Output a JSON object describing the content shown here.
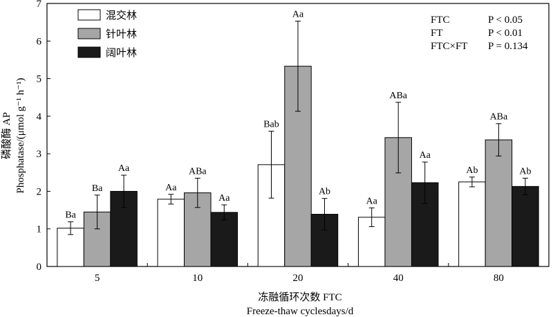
{
  "chart_data": {
    "type": "bar",
    "categories": [
      "5",
      "10",
      "20",
      "40",
      "80"
    ],
    "series": [
      {
        "name": "混交林",
        "color": "#ffffff",
        "values": [
          1.02,
          1.79,
          2.71,
          1.31,
          2.25
        ],
        "errors": [
          0.17,
          0.13,
          0.89,
          0.25,
          0.13
        ],
        "labels": [
          "Ba",
          "Aa",
          "Bab",
          "Aa",
          "Ab"
        ]
      },
      {
        "name": "针叶林",
        "color": "#a6a6a6",
        "values": [
          1.45,
          1.96,
          5.33,
          3.43,
          3.37
        ],
        "errors": [
          0.45,
          0.39,
          1.2,
          0.94,
          0.43
        ],
        "labels": [
          "Ba",
          "ABa",
          "Aa",
          "ABa",
          "ABa"
        ]
      },
      {
        "name": "阔叶林",
        "color": "#1a1a1a",
        "values": [
          2.0,
          1.44,
          1.39,
          2.23,
          2.13
        ],
        "errors": [
          0.43,
          0.2,
          0.42,
          0.55,
          0.22
        ],
        "labels": [
          "Aa",
          "Aa",
          "Ab",
          "Aa",
          "Ab"
        ]
      }
    ],
    "ylabel_cn": "磷酸酶 AP",
    "ylabel_en": "Phosphatase/(μmol g⁻¹ h⁻¹)",
    "xlabel_cn": "冻融循环次数 FTC",
    "xlabel_en": "Freeze-thaw cyclesdays/d",
    "ylim": [
      0,
      7
    ],
    "yticks": [
      "0",
      "1",
      "2",
      "3",
      "4",
      "5",
      "6",
      "7"
    ],
    "legend_position": "top-left",
    "stats": [
      {
        "term": "FTC",
        "p": "P < 0.05"
      },
      {
        "term": "FT",
        "p": "P < 0.01"
      },
      {
        "term": "FTC×FT",
        "p": "P = 0.134"
      }
    ]
  }
}
